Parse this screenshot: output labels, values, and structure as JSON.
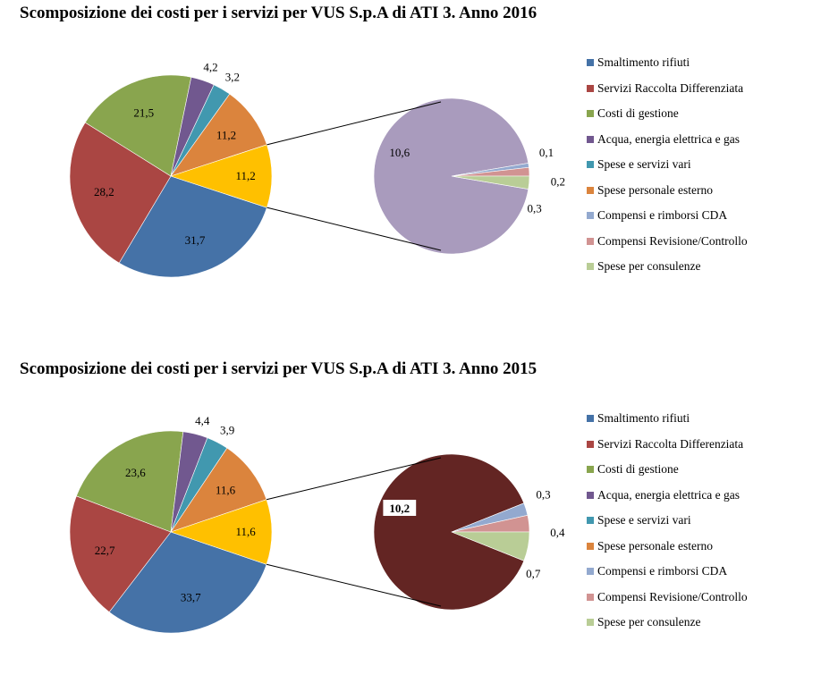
{
  "chart_data": [
    {
      "type": "pie",
      "title": "Scomposizione dei costi per i servizi per VUS S.p.A di ATI 3. Anno 2016",
      "legend": "right",
      "series": [
        {
          "name": "Smaltimento rifiuti",
          "value": 31.7,
          "label": "31,7",
          "color": "#4572a7"
        },
        {
          "name": "Servizi Raccolta Differenziata",
          "value": 28.2,
          "label": "28,2",
          "color": "#aa4643"
        },
        {
          "name": "Costi di gestione",
          "value": 21.5,
          "label": "21,5",
          "color": "#89a54e"
        },
        {
          "name": "Acqua, energia elettrica e gas",
          "value": 4.2,
          "label": "4,2",
          "color": "#71588f"
        },
        {
          "name": "Spese e servizi vari",
          "value": 3.2,
          "label": "3,2",
          "color": "#4198af"
        },
        {
          "name": "Spese personale esterno",
          "value": 11.2,
          "label": "11,2",
          "color": "#db843d"
        },
        {
          "name": "Compensi e rimborsi CDA",
          "value": 0.1,
          "label": "0,1",
          "color": "#93a9cf"
        },
        {
          "name": "Compensi Revisione/Controllo",
          "value": 0.2,
          "label": "0,2",
          "color": "#d19392"
        },
        {
          "name": "Spese per consulenze",
          "value": 0.3,
          "label": "0,3",
          "color": "#b9cd96"
        }
      ],
      "other": {
        "value": 11.2,
        "label": "11,2",
        "color": "#ffc000"
      },
      "detail": {
        "value": 10.6,
        "label": "10,6",
        "color": "#a99bbd"
      }
    },
    {
      "type": "pie",
      "title": "Scomposizione dei costi per i servizi per VUS S.p.A di ATI 3. Anno 2015",
      "legend": "right",
      "series": [
        {
          "name": "Smaltimento rifiuti",
          "value": 33.7,
          "label": "33,7",
          "color": "#4572a7"
        },
        {
          "name": "Servizi Raccolta Differenziata",
          "value": 22.7,
          "label": "22,7",
          "color": "#aa4643"
        },
        {
          "name": "Costi di gestione",
          "value": 23.6,
          "label": "23,6",
          "color": "#89a54e"
        },
        {
          "name": "Acqua, energia elettrica e gas",
          "value": 4.4,
          "label": "4,4",
          "color": "#71588f"
        },
        {
          "name": "Spese e servizi vari",
          "value": 3.9,
          "label": "3,9",
          "color": "#4198af"
        },
        {
          "name": "Spese personale esterno",
          "value": 11.6,
          "label": "11,6",
          "color": "#db843d"
        },
        {
          "name": "Compensi e rimborsi CDA",
          "value": 0.3,
          "label": "0,3",
          "color": "#93a9cf"
        },
        {
          "name": "Compensi Revisione/Controllo",
          "value": 0.4,
          "label": "0,4",
          "color": "#d19392"
        },
        {
          "name": "Spese per consulenze",
          "value": 0.7,
          "label": "0,7",
          "color": "#b9cd96"
        }
      ],
      "other": {
        "value": 11.6,
        "label": "11,6",
        "color": "#ffc000"
      },
      "detail": {
        "value": 10.2,
        "label": "10,2",
        "color": "#632523"
      }
    }
  ]
}
